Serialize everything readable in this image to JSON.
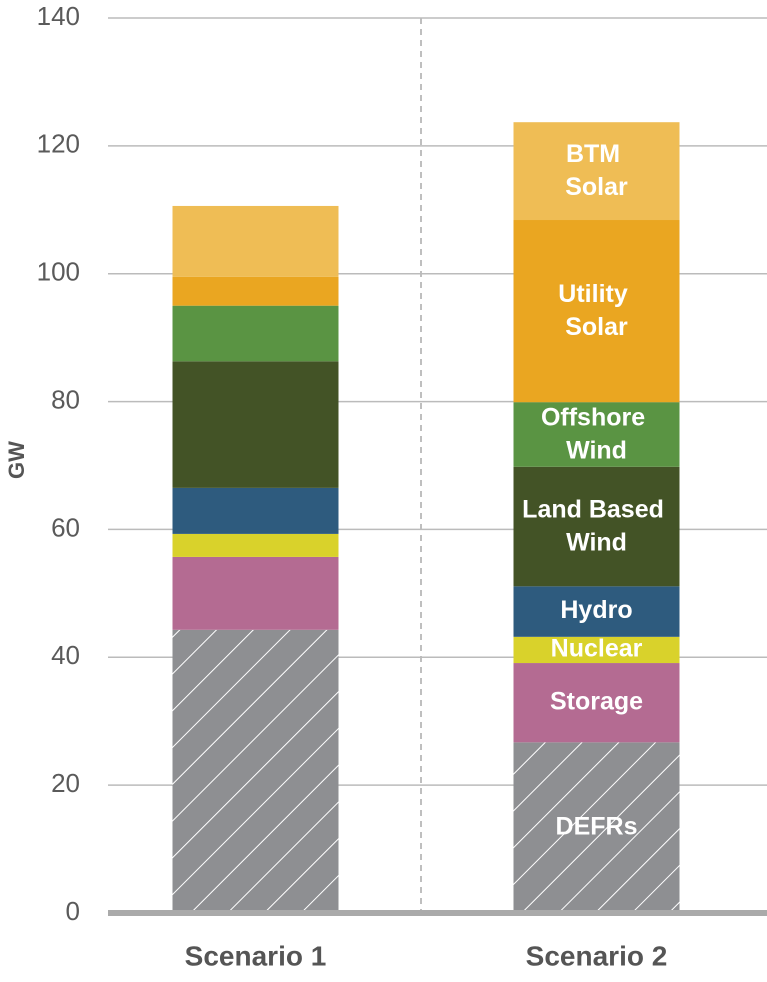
{
  "chart_data": {
    "type": "stacked_bar",
    "y_label": "GW",
    "categories": [
      "Scenario 1",
      "Scenario 2"
    ],
    "ylim": [
      0,
      140
    ],
    "yticks": [
      0,
      20,
      40,
      60,
      80,
      100,
      120,
      140
    ],
    "grid": true,
    "series": [
      {
        "name": "DEFRs",
        "color": "#8e8f92",
        "pattern": "hatch",
        "values": [
          44.3,
          26.7
        ]
      },
      {
        "name": "Storage",
        "color": "#b46b92",
        "values": [
          11.4,
          12.4
        ]
      },
      {
        "name": "Nuclear",
        "color": "#d9d22b",
        "values": [
          3.6,
          4.1
        ]
      },
      {
        "name": "Hydro",
        "color": "#2e5b7e",
        "values": [
          7.2,
          7.9
        ]
      },
      {
        "name": "Land Based Wind",
        "color": "#435326",
        "values": [
          19.8,
          18.7
        ]
      },
      {
        "name": "Offshore Wind",
        "color": "#5a9443",
        "values": [
          8.7,
          10.1
        ]
      },
      {
        "name": "Utility Solar",
        "color": "#eaa621",
        "values": [
          4.5,
          28.5
        ]
      },
      {
        "name": "BTM Solar",
        "color": "#efbd55",
        "values": [
          11.1,
          15.3
        ]
      }
    ]
  }
}
